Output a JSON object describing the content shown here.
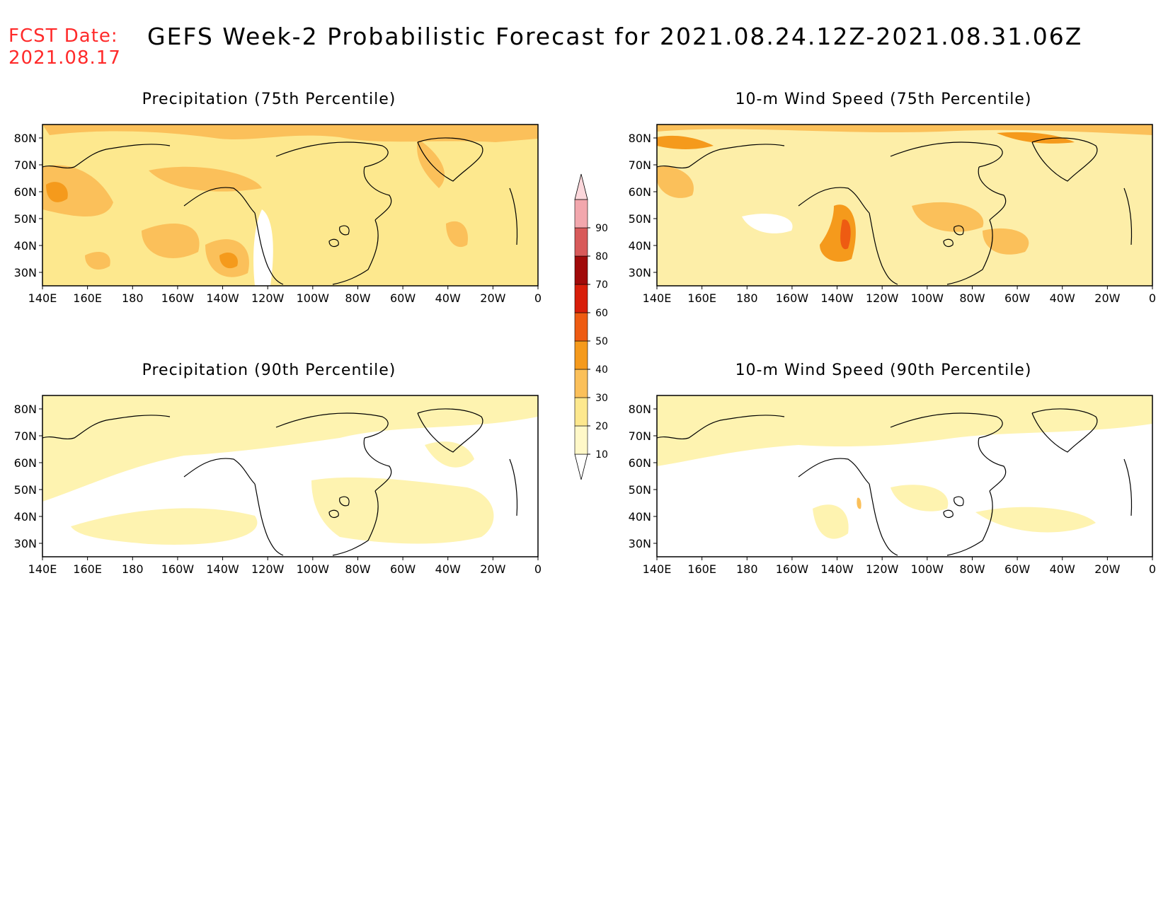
{
  "header": {
    "fcst_label": "FCST Date:",
    "fcst_date": "2021.08.17",
    "title": "GEFS Week-2 Probabilistic Forecast for 2021.08.24.12Z-2021.08.31.06Z"
  },
  "panels": [
    {
      "id": "precip75",
      "title": "Precipitation (75th Percentile)",
      "base": "#fde88e"
    },
    {
      "id": "wind75",
      "title": "10-m Wind Speed (75th Percentile)",
      "base": "#fdeea8"
    },
    {
      "id": "precip90",
      "title": "Precipitation (90th Percentile)",
      "base": "#ffffff"
    },
    {
      "id": "wind90",
      "title": "10-m Wind Speed (90th Percentile)",
      "base": "#ffffff"
    }
  ],
  "axes": {
    "lon_labels": [
      "140E",
      "160E",
      "180",
      "160W",
      "140W",
      "120W",
      "100W",
      "80W",
      "60W",
      "40W",
      "20W",
      "0"
    ],
    "lat_labels": [
      "80N",
      "70N",
      "60N",
      "50N",
      "40N",
      "30N"
    ]
  },
  "colorbar": {
    "levels": [
      "10",
      "20",
      "30",
      "40",
      "50",
      "60",
      "70",
      "80",
      "90"
    ],
    "colors": [
      "#fff8c8",
      "#fde88e",
      "#fbc05a",
      "#f59a1c",
      "#ee5b12",
      "#d81e0a",
      "#a00a0a",
      "#d85a5a",
      "#f2a7ad",
      "#fbd7db"
    ]
  }
}
